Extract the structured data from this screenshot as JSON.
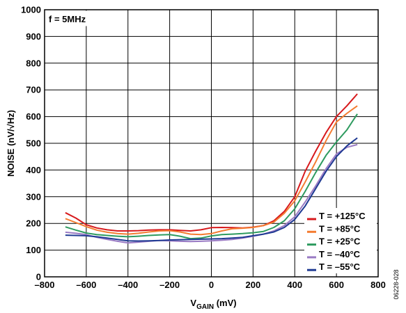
{
  "chart_data": {
    "type": "line",
    "annotation": "f = 5MHz",
    "ylabel": "NOISE (nV/√Hz)",
    "xlabel_main": "V",
    "xlabel_sub": "GAIN",
    "xlabel_unit": " (mV)",
    "figure_id": "06228-028",
    "xlim": [
      -800,
      800
    ],
    "ylim": [
      0,
      1000
    ],
    "x_ticks": [
      -800,
      -600,
      -400,
      -200,
      0,
      200,
      400,
      600,
      800
    ],
    "y_ticks": [
      0,
      100,
      200,
      300,
      400,
      500,
      600,
      700,
      800,
      900,
      1000
    ],
    "x_tick_labels": [
      "–800",
      "–600",
      "–400",
      "–200",
      "0",
      "200",
      "400",
      "600",
      "800"
    ],
    "y_tick_labels": [
      "0",
      "100",
      "200",
      "300",
      "400",
      "500",
      "600",
      "700",
      "800",
      "900",
      "1000"
    ],
    "grid": true,
    "legend_position": "bottom-right",
    "series": [
      {
        "name": "T = +125°C",
        "color": "#d7191c",
        "x": [
          -700,
          -650,
          -600,
          -550,
          -500,
          -450,
          -400,
          -350,
          -300,
          -250,
          -200,
          -150,
          -100,
          -50,
          0,
          50,
          100,
          150,
          200,
          250,
          300,
          350,
          400,
          450,
          500,
          550,
          600,
          650,
          700
        ],
        "y": [
          240,
          220,
          195,
          183,
          176,
          172,
          172,
          173,
          175,
          176,
          176,
          174,
          172,
          176,
          184,
          185,
          184,
          183,
          186,
          192,
          210,
          245,
          300,
          395,
          470,
          540,
          600,
          640,
          685
        ]
      },
      {
        "name": "T = +85°C",
        "color": "#f47c30",
        "x": [
          -700,
          -650,
          -600,
          -550,
          -500,
          -450,
          -400,
          -350,
          -300,
          -250,
          -200,
          -150,
          -100,
          -50,
          0,
          50,
          100,
          150,
          200,
          250,
          300,
          350,
          400,
          450,
          500,
          550,
          600,
          650,
          700
        ],
        "y": [
          218,
          203,
          188,
          175,
          167,
          162,
          160,
          163,
          168,
          172,
          173,
          168,
          160,
          158,
          162,
          172,
          180,
          182,
          185,
          192,
          205,
          238,
          285,
          355,
          430,
          510,
          580,
          612,
          640
        ]
      },
      {
        "name": "T = +25°C",
        "color": "#2e9b5f",
        "x": [
          -700,
          -650,
          -600,
          -550,
          -500,
          -450,
          -400,
          -350,
          -300,
          -250,
          -200,
          -150,
          -100,
          -50,
          0,
          50,
          100,
          150,
          200,
          250,
          300,
          350,
          400,
          450,
          500,
          550,
          600,
          650,
          700
        ],
        "y": [
          187,
          175,
          164,
          158,
          155,
          152,
          150,
          152,
          155,
          157,
          158,
          152,
          143,
          145,
          153,
          158,
          160,
          162,
          165,
          170,
          185,
          210,
          255,
          320,
          390,
          455,
          505,
          550,
          610
        ]
      },
      {
        "name": "T = –40°C",
        "color": "#9a7bc4",
        "x": [
          -700,
          -650,
          -600,
          -550,
          -500,
          -450,
          -400,
          -350,
          -300,
          -250,
          -200,
          -150,
          -100,
          -50,
          0,
          50,
          100,
          150,
          200,
          250,
          300,
          350,
          400,
          450,
          500,
          550,
          600,
          650,
          700
        ],
        "y": [
          167,
          163,
          158,
          148,
          140,
          133,
          127,
          130,
          133,
          136,
          135,
          133,
          132,
          133,
          135,
          137,
          140,
          145,
          152,
          160,
          172,
          192,
          225,
          280,
          340,
          405,
          460,
          485,
          495
        ]
      },
      {
        "name": "T = –55°C",
        "color": "#1f3a93",
        "x": [
          -700,
          -650,
          -600,
          -550,
          -500,
          -450,
          -400,
          -350,
          -300,
          -250,
          -200,
          -150,
          -100,
          -50,
          0,
          50,
          100,
          150,
          200,
          250,
          300,
          350,
          400,
          450,
          500,
          550,
          600,
          650,
          700
        ],
        "y": [
          156,
          155,
          154,
          150,
          145,
          140,
          135,
          134,
          135,
          136,
          138,
          139,
          140,
          141,
          142,
          143,
          145,
          148,
          154,
          160,
          168,
          185,
          215,
          265,
          330,
          395,
          450,
          490,
          520
        ]
      }
    ]
  }
}
